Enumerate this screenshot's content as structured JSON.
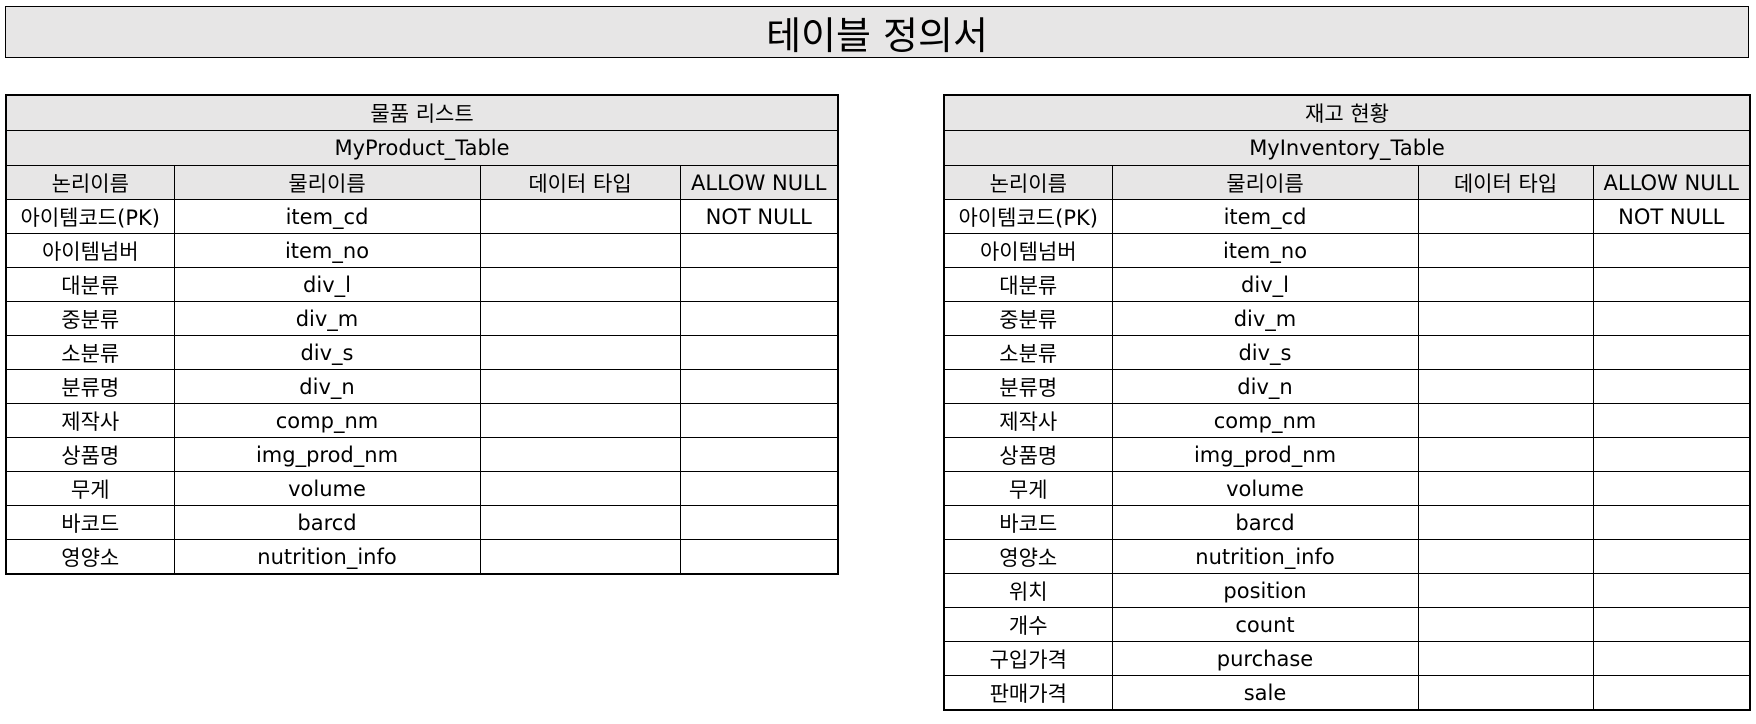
{
  "page_title": "테이블 정의서",
  "tables": [
    {
      "title_ko": "물품 리스트",
      "title_en": "MyProduct_Table",
      "headers": [
        "논리이름",
        "물리이름",
        "데이터 타입",
        "ALLOW NULL"
      ],
      "rows": [
        [
          "아이템코드(PK)",
          "item_cd",
          "",
          "NOT NULL"
        ],
        [
          "아이템넘버",
          "item_no",
          "",
          ""
        ],
        [
          "대분류",
          "div_l",
          "",
          ""
        ],
        [
          "중분류",
          "div_m",
          "",
          ""
        ],
        [
          "소분류",
          "div_s",
          "",
          ""
        ],
        [
          "분류명",
          "div_n",
          "",
          ""
        ],
        [
          "제작사",
          "comp_nm",
          "",
          ""
        ],
        [
          "상품명",
          "img_prod_nm",
          "",
          ""
        ],
        [
          "무게",
          "volume",
          "",
          ""
        ],
        [
          "바코드",
          "barcd",
          "",
          ""
        ],
        [
          "영양소",
          "nutrition_info",
          "",
          ""
        ]
      ]
    },
    {
      "title_ko": "재고 현황",
      "title_en": "MyInventory_Table",
      "headers": [
        "논리이름",
        "물리이름",
        "데이터 타입",
        "ALLOW NULL"
      ],
      "rows": [
        [
          "아이템코드(PK)",
          "item_cd",
          "",
          "NOT NULL"
        ],
        [
          "아이템넘버",
          "item_no",
          "",
          ""
        ],
        [
          "대분류",
          "div_l",
          "",
          ""
        ],
        [
          "중분류",
          "div_m",
          "",
          ""
        ],
        [
          "소분류",
          "div_s",
          "",
          ""
        ],
        [
          "분류명",
          "div_n",
          "",
          ""
        ],
        [
          "제작사",
          "comp_nm",
          "",
          ""
        ],
        [
          "상품명",
          "img_prod_nm",
          "",
          ""
        ],
        [
          "무게",
          "volume",
          "",
          ""
        ],
        [
          "바코드",
          "barcd",
          "",
          ""
        ],
        [
          "영양소",
          "nutrition_info",
          "",
          ""
        ],
        [
          "위치",
          "position",
          "",
          ""
        ],
        [
          "개수",
          "count",
          "",
          ""
        ],
        [
          "구입가격",
          "purchase",
          "",
          ""
        ],
        [
          "판매가격",
          "sale",
          "",
          ""
        ]
      ]
    }
  ]
}
